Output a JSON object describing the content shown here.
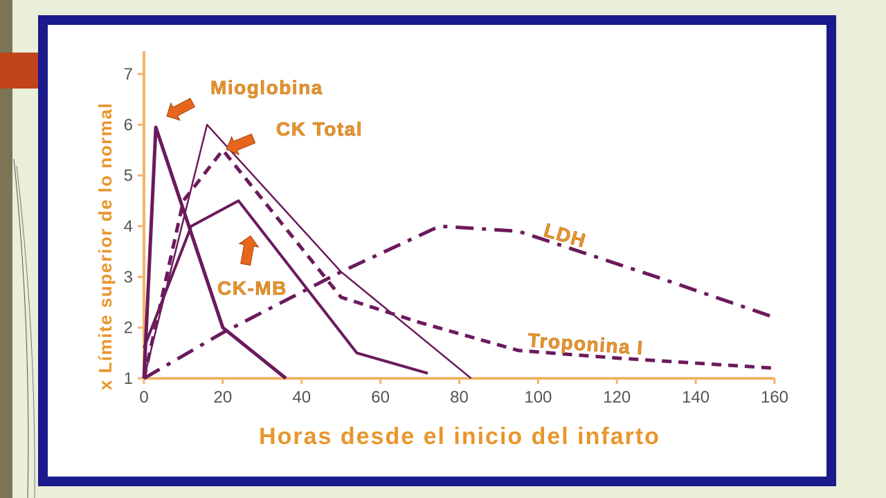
{
  "chart_data": {
    "type": "line",
    "title": "",
    "xlabel": "Horas desde el inicio del infarto",
    "ylabel": "x Límite superior de lo normal",
    "xlim": [
      0,
      160
    ],
    "ylim": [
      1,
      7
    ],
    "x_ticks": [
      "0",
      "20",
      "40",
      "60",
      "80",
      "100",
      "120",
      "140",
      "160"
    ],
    "y_ticks": [
      "1",
      "2",
      "3",
      "4",
      "5",
      "6",
      "7"
    ],
    "grid": false,
    "colors": {
      "series": "#6b1a5c",
      "axis": "#f2b46b",
      "label": "#e8962c",
      "arrow": "#e8661c"
    },
    "series": [
      {
        "name": "Mioglobina",
        "style": "thick-solid",
        "x": [
          0,
          3,
          20,
          36
        ],
        "y": [
          1,
          5.95,
          2,
          1
        ]
      },
      {
        "name": "CK Total",
        "style": "thin-solid",
        "x": [
          0,
          16,
          50,
          83
        ],
        "y": [
          1,
          6,
          3.1,
          1
        ]
      },
      {
        "name": "CK-MB",
        "style": "solid",
        "x": [
          0,
          12,
          24,
          54,
          72
        ],
        "y": [
          1.6,
          4,
          4.5,
          1.5,
          1.1
        ]
      },
      {
        "name": "Troponina I",
        "style": "dashed",
        "x": [
          0,
          10,
          20,
          50,
          70,
          95,
          120,
          160
        ],
        "y": [
          1,
          4.5,
          5.5,
          2.6,
          2.1,
          1.55,
          1.4,
          1.2
        ]
      },
      {
        "name": "LDH",
        "style": "dash-dot",
        "x": [
          0,
          20,
          50,
          75,
          95,
          130,
          160
        ],
        "y": [
          1,
          1.9,
          3.1,
          4,
          3.9,
          3,
          2.2
        ]
      }
    ]
  }
}
